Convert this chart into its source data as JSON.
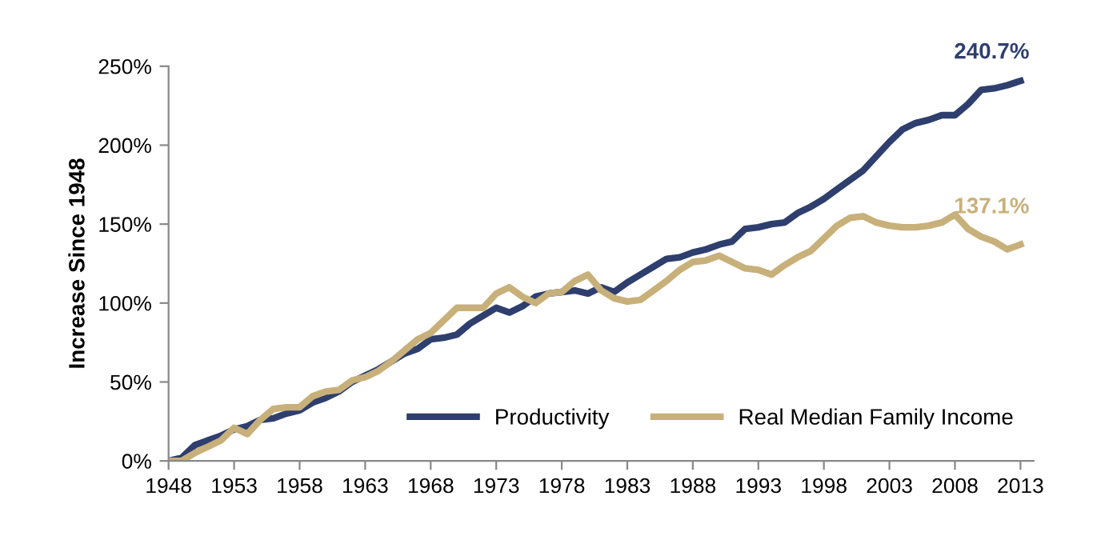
{
  "chart_data": {
    "type": "line",
    "ylabel": "Increase Since 1948",
    "x": [
      1948,
      1949,
      1950,
      1951,
      1952,
      1953,
      1954,
      1955,
      1956,
      1957,
      1958,
      1959,
      1960,
      1961,
      1962,
      1963,
      1964,
      1965,
      1966,
      1967,
      1968,
      1969,
      1970,
      1971,
      1972,
      1973,
      1974,
      1975,
      1976,
      1977,
      1978,
      1979,
      1980,
      1981,
      1982,
      1983,
      1984,
      1985,
      1986,
      1987,
      1988,
      1989,
      1990,
      1991,
      1992,
      1993,
      1994,
      1995,
      1996,
      1997,
      1998,
      1999,
      2000,
      2001,
      2002,
      2003,
      2004,
      2005,
      2006,
      2007,
      2008,
      2009,
      2010,
      2011,
      2012,
      2013
    ],
    "series": [
      {
        "name": "Productivity",
        "color": "#2e3f6e",
        "values": [
          0,
          2,
          10,
          13,
          16,
          20,
          22,
          26,
          27,
          30,
          32,
          37,
          40,
          44,
          50,
          54,
          58,
          63,
          68,
          71,
          77,
          78,
          80,
          87,
          92,
          97,
          94,
          98,
          104,
          106,
          107,
          108,
          106,
          110,
          107,
          113,
          118,
          123,
          128,
          129,
          132,
          134,
          137,
          139,
          147,
          148,
          150,
          151,
          157,
          161,
          166,
          172,
          178,
          184,
          193,
          202,
          210,
          214,
          216,
          219,
          219,
          226,
          235,
          236,
          238,
          240.7
        ]
      },
      {
        "name": "Real Median Family Income",
        "color": "#c8b07a",
        "values": [
          0,
          0,
          5,
          9,
          13,
          21,
          17,
          26,
          33,
          34,
          34,
          41,
          44,
          45,
          51,
          53,
          57,
          63,
          70,
          77,
          81,
          89,
          97,
          97,
          97,
          106,
          110,
          104,
          100,
          106,
          107,
          114,
          118,
          108,
          103,
          101,
          102,
          108,
          114,
          121,
          126,
          127,
          130,
          126,
          122,
          121,
          118,
          124,
          129,
          133,
          141,
          149,
          154,
          155,
          151,
          149,
          148,
          148,
          149,
          151,
          156,
          147,
          142,
          139,
          134,
          137.1
        ]
      }
    ],
    "annotations": [
      {
        "text": "240.7%",
        "x": 2013,
        "y": 240.7
      },
      {
        "text": "137.1%",
        "x": 2013,
        "y": 137.1
      }
    ],
    "xlim": [
      1948,
      2014
    ],
    "xticks": [
      1948,
      1953,
      1958,
      1963,
      1968,
      1973,
      1978,
      1983,
      1988,
      1993,
      1998,
      2003,
      2008,
      2013
    ],
    "ylim": [
      0,
      250
    ],
    "yticks": [
      {
        "value": 0,
        "label": "0%"
      },
      {
        "value": 50,
        "label": "50%"
      },
      {
        "value": 100,
        "label": "100%"
      },
      {
        "value": 150,
        "label": "150%"
      },
      {
        "value": 200,
        "label": "200%"
      },
      {
        "value": 250,
        "label": "250%"
      }
    ],
    "grid": false,
    "legend": "bottom right",
    "line_style": "solid"
  }
}
